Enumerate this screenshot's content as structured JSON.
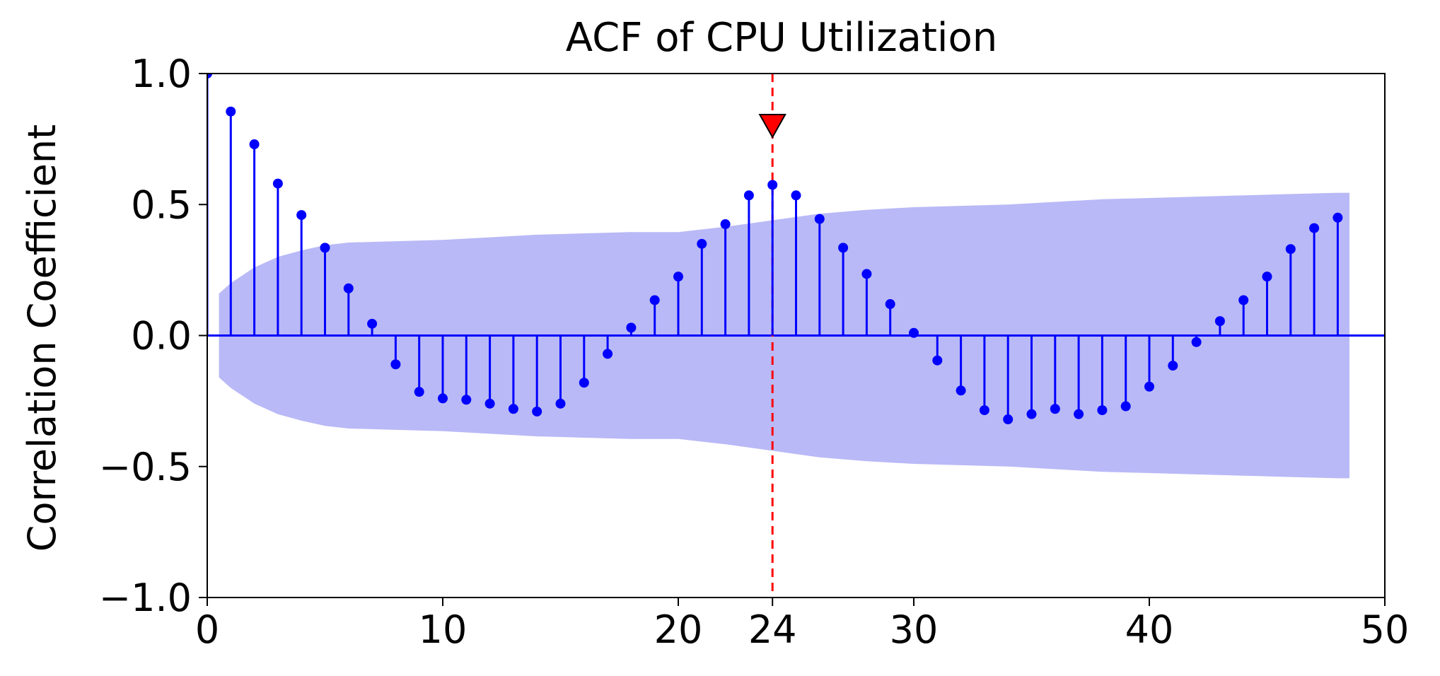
{
  "chart_data": {
    "type": "stem",
    "title": "ACF of CPU Utilization",
    "xlabel": "",
    "ylabel": "Correlation Coefficient",
    "xlim": [
      0,
      50
    ],
    "ylim": [
      -1.0,
      1.0
    ],
    "x_ticks": [
      0,
      10,
      20,
      24,
      30,
      40,
      50
    ],
    "x_tick_labels": [
      "0",
      "10",
      "20",
      "24",
      "30",
      "40",
      "50"
    ],
    "y_ticks": [
      -1.0,
      -0.5,
      0.0,
      0.5,
      1.0
    ],
    "y_tick_labels": [
      "−1.0",
      "−0.5",
      "0.0",
      "0.5",
      "1.0"
    ],
    "grid": false,
    "highlight_lag": 24,
    "colors": {
      "stem": "#0000ff",
      "confidence_band": "#9b9bf4",
      "highlight": "#ff0000",
      "axis": "#000000"
    },
    "series": [
      {
        "lags": [
          0,
          1,
          2,
          3,
          4,
          5,
          6,
          7,
          8,
          9,
          10,
          11,
          12,
          13,
          14,
          15,
          16,
          17,
          18,
          19,
          20,
          21,
          22,
          23,
          24,
          25,
          26,
          27,
          28,
          29,
          30,
          31,
          32,
          33,
          34,
          35,
          36,
          37,
          38,
          39,
          40,
          41,
          42,
          43,
          44,
          45,
          46,
          47,
          48
        ],
        "values": [
          1.0,
          0.855,
          0.73,
          0.58,
          0.46,
          0.335,
          0.18,
          0.045,
          -0.11,
          -0.215,
          -0.24,
          -0.245,
          -0.26,
          -0.28,
          -0.29,
          -0.26,
          -0.18,
          -0.07,
          0.03,
          0.135,
          0.225,
          0.35,
          0.425,
          0.535,
          0.575,
          0.535,
          0.445,
          0.335,
          0.235,
          0.12,
          0.01,
          -0.095,
          -0.21,
          -0.285,
          -0.32,
          -0.3,
          -0.28,
          -0.3,
          -0.285,
          -0.27,
          -0.195,
          -0.115,
          -0.025,
          0.055,
          0.135,
          0.225,
          0.33,
          0.41,
          0.45
        ]
      }
    ],
    "confidence_band": {
      "x": [
        0.5,
        1,
        2,
        3,
        4,
        5,
        6,
        8,
        10,
        12,
        14,
        16,
        18,
        20,
        22,
        24,
        26,
        28,
        30,
        32,
        34,
        36,
        38,
        40,
        42,
        44,
        46,
        48,
        48.5
      ],
      "upper": [
        0.16,
        0.2,
        0.26,
        0.3,
        0.325,
        0.345,
        0.355,
        0.36,
        0.365,
        0.375,
        0.385,
        0.39,
        0.395,
        0.395,
        0.415,
        0.44,
        0.465,
        0.48,
        0.49,
        0.495,
        0.5,
        0.51,
        0.52,
        0.525,
        0.53,
        0.535,
        0.54,
        0.545,
        0.545
      ],
      "lower": [
        -0.16,
        -0.2,
        -0.26,
        -0.3,
        -0.325,
        -0.345,
        -0.355,
        -0.36,
        -0.365,
        -0.375,
        -0.385,
        -0.39,
        -0.395,
        -0.395,
        -0.415,
        -0.44,
        -0.465,
        -0.48,
        -0.49,
        -0.495,
        -0.5,
        -0.51,
        -0.52,
        -0.525,
        -0.53,
        -0.535,
        -0.54,
        -0.545,
        -0.545
      ]
    }
  }
}
